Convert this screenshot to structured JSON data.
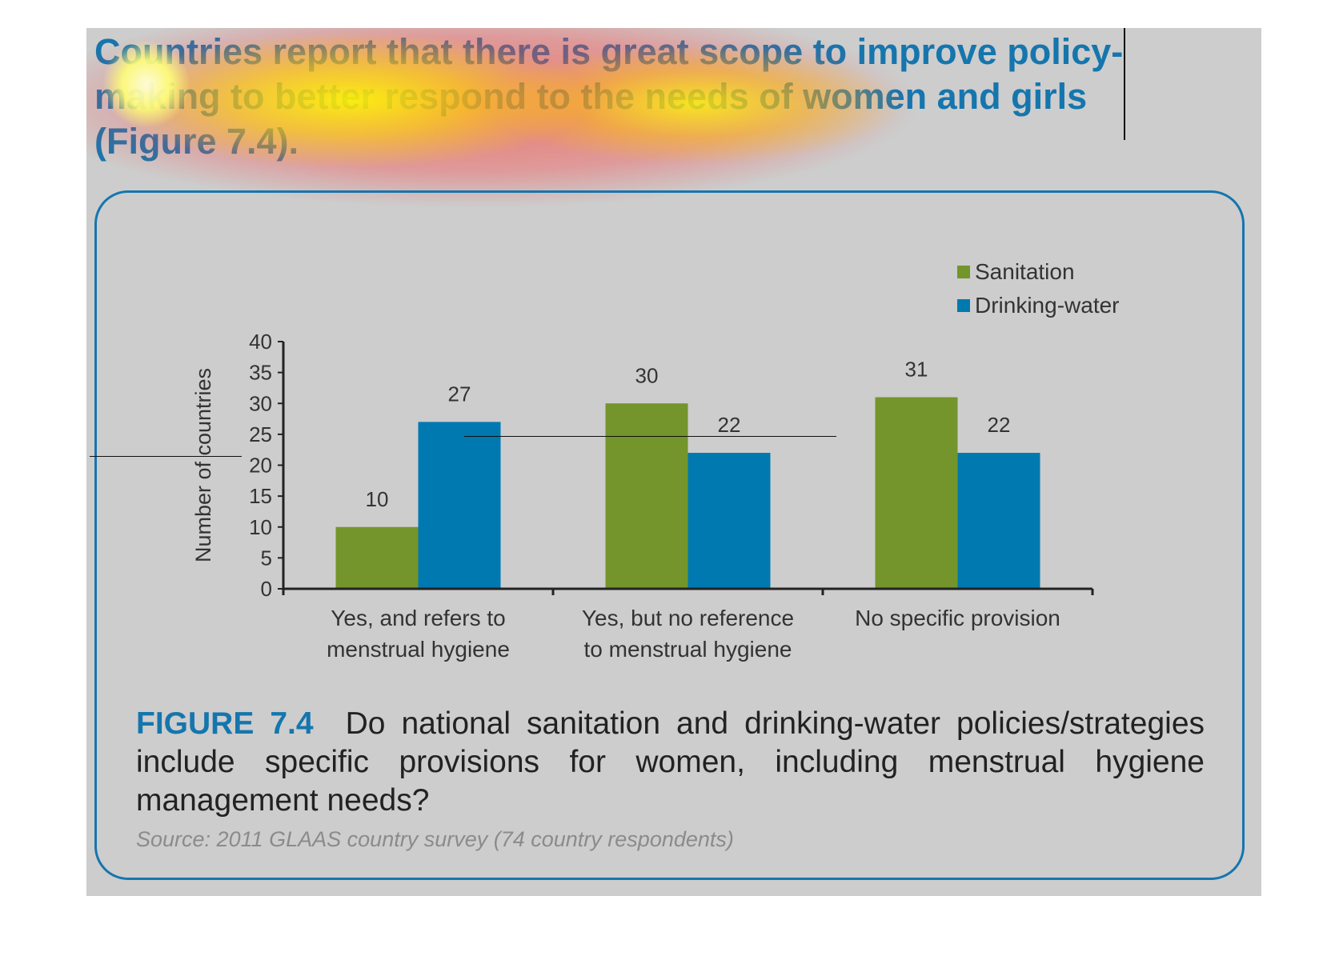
{
  "headline": "Countries report that there is great scope to improve policy-making to better respond to the needs of women and girls (Figure 7.4).",
  "colors": {
    "sanitation": "#74952b",
    "drinking_water": "#0079b0",
    "accent": "#1576ae",
    "panel": "#cdcdcd"
  },
  "chart_data": {
    "type": "bar",
    "ylabel": "Number of countries",
    "ylim": [
      0,
      40
    ],
    "yticks": [
      "0",
      "5",
      "10",
      "15",
      "20",
      "25",
      "30",
      "35",
      "40"
    ],
    "categories": [
      [
        "Yes, and refers to",
        "menstrual hygiene"
      ],
      [
        "Yes, but no reference",
        "to menstrual hygiene"
      ],
      [
        "No specific provision"
      ]
    ],
    "series": [
      {
        "name": "Sanitation",
        "values": [
          10,
          30,
          31
        ]
      },
      {
        "name": "Drinking-water",
        "values": [
          27,
          22,
          22
        ]
      }
    ],
    "legend": "top-right",
    "grid": false
  },
  "caption": {
    "label": "FIGURE 7.4",
    "text": "Do national sanitation and drinking-water policies/strategies include specific provisions for women, including menstrual hygiene management needs?"
  },
  "source": "Source: 2011 GLAAS country survey (74 country respondents)"
}
